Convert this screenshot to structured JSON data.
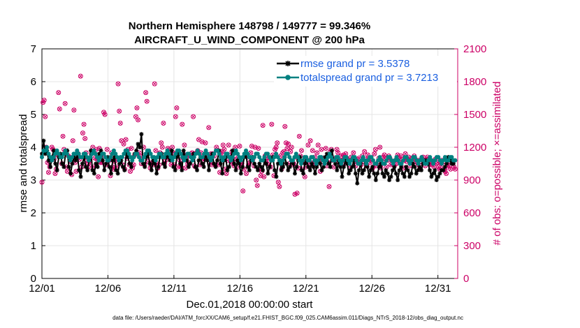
{
  "chart_data": {
    "type": "line",
    "title_lines": [
      "Northern Hemisphere 148798 / 149777 = 99.346%",
      "AIRCRAFT_U_WIND_COMPONENT @ 200 hPa"
    ],
    "xlabel": "Dec.01,2018 00:00:00 start",
    "ylabel": "rmse and totalspread",
    "y2label": "# of obs: o=possible; ×=assimilated",
    "footnote": "data file: /Users/raeder/DAI/ATM_forcXX/CAM6_setup/f.e21.FHIST_BGC.f09_025.CAM6assim.011/Diags_NTrS_2018-12/obs_diag_output.nc",
    "xlim": [
      0,
      31.5
    ],
    "ylim": [
      0,
      7
    ],
    "y2lim": [
      0,
      2100
    ],
    "xticks": [
      0,
      5,
      10,
      15,
      20,
      25,
      30
    ],
    "xticklabels": [
      "12/01",
      "12/06",
      "12/11",
      "12/16",
      "12/21",
      "12/26",
      "12/31"
    ],
    "yticks": [
      0,
      1,
      2,
      3,
      4,
      5,
      6,
      7
    ],
    "yticklabels": [
      "0",
      "1",
      "2",
      "3",
      "4",
      "5",
      "6",
      "7"
    ],
    "y2ticks": [
      0,
      300,
      600,
      900,
      1200,
      1500,
      1800,
      2100
    ],
    "y2ticklabels": [
      "0",
      "300",
      "600",
      "900",
      "1200",
      "1500",
      "1800",
      "2100"
    ],
    "colors": {
      "rmse": "#000000",
      "spread": "#008080",
      "obs": "#cc0066",
      "legend_text": "#1a5fe0"
    },
    "series": [
      {
        "name": "rmse",
        "label": "rmse grand pr = 3.5378",
        "values": [
          3.8,
          4.2,
          3.8,
          3.9,
          3.6,
          3.4,
          3.7,
          3.9,
          3.5,
          3.3,
          3.7,
          3.8,
          3.5,
          3.4,
          3.8,
          3.9,
          3.4,
          3.2,
          3.5,
          3.7,
          3.6,
          3.8,
          3.3,
          3.1,
          3.5,
          3.7,
          3.4,
          3.3,
          3.6,
          3.9,
          3.3,
          3.2,
          3.5,
          3.4,
          3.8,
          3.9,
          3.6,
          3.3,
          3.5,
          3.7,
          3.4,
          3.2,
          3.6,
          3.7,
          3.3,
          3.2,
          3.5,
          3.6,
          3.4,
          3.3,
          3.8,
          3.7,
          3.5,
          3.4,
          3.7,
          3.8,
          3.9,
          4.1,
          4.0,
          4.4,
          3.5,
          3.4,
          3.7,
          3.8,
          3.5,
          3.3,
          3.6,
          3.5,
          3.2,
          3.4,
          3.7,
          3.8,
          3.5,
          3.4,
          3.8,
          3.7,
          3.6,
          3.9,
          3.4,
          3.3,
          3.7,
          3.8,
          3.5,
          3.3,
          3.9,
          3.7,
          3.6,
          3.4,
          3.5,
          3.7,
          3.8,
          3.4,
          3.3,
          3.6,
          3.7,
          3.5,
          3.4,
          3.8,
          3.6,
          3.3,
          3.7,
          3.8,
          3.5,
          3.4,
          3.6,
          3.9,
          3.5,
          3.2,
          3.6,
          3.7,
          3.3,
          3.4,
          3.7,
          3.9,
          3.5,
          3.3,
          3.6,
          3.5,
          3.2,
          3.4,
          3.7,
          3.8,
          3.4,
          3.3,
          3.6,
          3.7,
          3.5,
          3.4,
          3.3,
          3.5,
          3.4,
          3.3,
          3.6,
          3.5,
          3.2,
          3.4,
          3.6,
          3.7,
          3.3,
          3.1,
          3.5,
          3.6,
          3.3,
          3.4,
          3.7,
          3.5,
          3.3,
          3.4,
          3.6,
          3.5,
          3.2,
          3.4,
          3.6,
          3.7,
          3.3,
          3.2,
          3.5,
          3.6,
          3.4,
          3.3,
          3.5,
          3.4,
          3.2,
          3.4,
          3.6,
          3.5,
          3.3,
          3.4,
          3.7,
          3.8,
          3.5,
          3.4,
          3.9,
          3.6,
          3.5,
          3.3,
          3.6,
          3.4,
          3.1,
          3.4,
          3.6,
          3.5,
          3.2,
          3.3,
          3.4,
          3.6,
          3.2,
          2.9,
          3.3,
          3.5,
          3.2,
          3.3,
          3.5,
          3.4,
          3.1,
          3.3,
          3.4,
          3.2,
          3.0,
          3.2,
          3.4,
          3.5,
          3.2,
          3.1,
          3.3,
          3.2,
          3.0,
          3.1,
          3.3,
          3.4,
          3.2,
          3.0,
          3.3,
          3.4,
          3.2,
          3.1,
          3.4,
          3.3,
          3.1,
          3.2,
          3.5,
          3.4,
          3.2,
          3.3,
          3.4,
          3.3,
          3.5,
          3.6,
          3.6,
          3.5,
          3.3,
          3.1,
          3.2,
          3.3,
          3.0,
          3.1,
          3.2,
          3.3,
          3.3,
          3.4,
          3.5,
          3.7,
          3.6,
          3.5,
          3.5,
          3.6
        ]
      },
      {
        "name": "totalspread",
        "label": "totalspread grand pr = 3.7213",
        "values": [
          3.7,
          3.9,
          3.9,
          4.0,
          3.8,
          3.7,
          3.6,
          3.7,
          3.8,
          3.9,
          3.8,
          3.7,
          3.7,
          3.8,
          3.9,
          3.8,
          3.7,
          3.6,
          3.7,
          3.8,
          3.8,
          3.9,
          3.8,
          3.7,
          3.7,
          3.8,
          3.8,
          3.7,
          3.6,
          3.7,
          3.8,
          3.9,
          3.8,
          3.7,
          3.6,
          3.7,
          3.8,
          3.8,
          3.7,
          3.6,
          3.6,
          3.7,
          3.8,
          3.9,
          3.8,
          3.7,
          3.6,
          3.7,
          3.7,
          3.8,
          3.9,
          3.9,
          3.8,
          3.7,
          3.6,
          3.7,
          3.8,
          3.8,
          3.7,
          3.6,
          3.6,
          3.7,
          3.8,
          3.9,
          3.9,
          3.8,
          3.7,
          3.7,
          3.6,
          3.7,
          3.8,
          3.8,
          3.7,
          3.7,
          3.8,
          3.9,
          3.8,
          3.7,
          3.6,
          3.7,
          3.8,
          3.9,
          3.9,
          3.8,
          3.7,
          3.6,
          3.7,
          3.8,
          3.8,
          3.7,
          3.6,
          3.7,
          3.8,
          3.9,
          3.8,
          3.7,
          3.7,
          3.8,
          3.9,
          3.8,
          3.7,
          3.6,
          3.7,
          3.8,
          3.9,
          3.9,
          3.8,
          3.7,
          3.6,
          3.7,
          3.8,
          3.8,
          3.7,
          3.6,
          3.7,
          3.8,
          3.9,
          3.8,
          3.7,
          3.6,
          3.7,
          3.8,
          3.9,
          3.8,
          3.7,
          3.7,
          3.6,
          3.7,
          3.8,
          3.8,
          3.7,
          3.6,
          3.6,
          3.7,
          3.8,
          3.8,
          3.7,
          3.6,
          3.6,
          3.7,
          3.8,
          3.7,
          3.6,
          3.5,
          3.6,
          3.7,
          3.8,
          3.8,
          3.7,
          3.6,
          3.6,
          3.7,
          3.8,
          3.7,
          3.6,
          3.5,
          3.6,
          3.7,
          3.7,
          3.6,
          3.6,
          3.7,
          3.7,
          3.6,
          3.5,
          3.6,
          3.7,
          3.7,
          3.6,
          3.5,
          3.6,
          3.7,
          3.8,
          3.7,
          3.6,
          3.6,
          3.7,
          3.7,
          3.6,
          3.5,
          3.6,
          3.7,
          3.7,
          3.6,
          3.5,
          3.6,
          3.7,
          3.7,
          3.6,
          3.5,
          3.5,
          3.6,
          3.7,
          3.6,
          3.5,
          3.6,
          3.7,
          3.7,
          3.6,
          3.5,
          3.5,
          3.6,
          3.7,
          3.6,
          3.5,
          3.5,
          3.6,
          3.7,
          3.7,
          3.6,
          3.5,
          3.6,
          3.7,
          3.6,
          3.5,
          3.5,
          3.6,
          3.7,
          3.7,
          3.6,
          3.5,
          3.6,
          3.7,
          3.7,
          3.6,
          3.5,
          3.6,
          3.7,
          3.6,
          3.5,
          3.5,
          3.6,
          3.7,
          3.6,
          3.5,
          3.6,
          3.7,
          3.7,
          3.6,
          3.5,
          3.6,
          3.7,
          3.6,
          3.6,
          3.7,
          3.7,
          3.6,
          3.6
        ]
      }
    ],
    "obs_counts": [
      880,
      1610,
      1630,
      1480,
      1200,
      1060,
      970,
      1020,
      1100,
      1200,
      1180,
      1090,
      960,
      1000,
      1130,
      1700,
      1550,
      1120,
      1050,
      1300,
      1180,
      1600,
      1020,
      980,
      1120,
      1110,
      1070,
      950,
      1260,
      1540,
      1060,
      980,
      1120,
      1140,
      1090,
      1850,
      1020,
      1330,
      1410,
      1280,
      1150,
      1080,
      1050,
      1070,
      1020,
      1140,
      1200,
      1020,
      1100,
      1180,
      1090,
      930,
      1190,
      1060,
      1060,
      1120,
      1520,
      1500,
      1040,
      1180,
      1080,
      1080,
      940,
      1150,
      1020,
      1000,
      1070,
      1090,
      1020,
      1780,
      1530,
      1420,
      1260,
      1040,
      1230,
      1000,
      1270,
      1100,
      1180,
      1040,
      980,
      1190,
      1010,
      1040,
      1130,
      1480,
      1560,
      1450,
      1150,
      1120,
      1050,
      1100,
      1200,
      1040,
      1700,
      1620,
      1070,
      1150,
      1010,
      1040,
      1060,
      1040,
      1780,
      1170,
      1050,
      1010,
      1040,
      1150,
      1240,
      1200,
      1420,
      1050,
      1080,
      1140,
      1190,
      1170,
      1100,
      1040,
      1200,
      1150,
      1040,
      1480,
      1560,
      1020,
      1140,
      1080,
      1020,
      1410,
      1140,
      1220,
      1010,
      1110,
      1050,
      1060,
      1120,
      1140,
      1150,
      1480,
      1030,
      1020,
      1150,
      1170,
      1270,
      1040,
      1150,
      1250,
      1080,
      1100,
      1240,
      1110,
      1130,
      1380,
      1060,
      1140,
      1040,
      1140,
      1120,
      1040,
      1200,
      1170,
      1040,
      970,
      1140,
      1160,
      1220,
      1180,
      1000,
      960,
      1080,
      1220,
      1120,
      1070,
      1160,
      1050,
      1030,
      1200,
      1090,
      1100,
      1020,
      1210,
      1050,
      1050,
      800,
      1000,
      1130,
      960,
      1110,
      1040,
      1060,
      1150,
      1210,
      1090,
      1030,
      1200,
      900,
      850,
      1190,
      1000,
      940,
      980,
      1400,
      930,
      1120,
      1060,
      1050,
      1100,
      1100,
      1020,
      1410,
      1130,
      940,
      1180,
      1200,
      1240,
      880,
      840,
      1120,
      1000,
      1150,
      1160,
      1390,
      1240,
      1190,
      1230,
      1050,
      1160,
      1200,
      1040,
      1050,
      770,
      1110,
      780,
      1010,
      1300,
      1120,
      1170,
      1000,
      1060,
      930,
      1020,
      1060,
      1220,
      1080,
      1260,
      1040,
      1170,
      1060,
      1110,
      1040,
      1150,
      1220,
      1080,
      980,
      1180,
      1100,
      1060,
      1100,
      1190,
      1030,
      1060,
      840,
      1160,
      1180,
      1080,
      1020,
      1100,
      1090,
      1180,
      1150,
      1060,
      1040,
      1120,
      1080,
      1130,
      1050,
      1140,
      1100,
      1080,
      1060,
      1010,
      1110,
      1090,
      1150,
      1070,
      1030,
      1080,
      1090,
      1100,
      1050,
      1040,
      1120,
      1070,
      1160,
      1090,
      1030,
      1130,
      1100,
      1060,
      1080,
      1000,
      1020,
      1140,
      1180,
      1030,
      1060,
      1100,
      1200,
      1010,
      1050,
      1110,
      1130,
      1090,
      1020,
      1080,
      1120,
      1100,
      1040,
      1050,
      1070,
      1030,
      1080,
      1050,
      1130,
      1100,
      1060,
      1120,
      1090,
      1010,
      1080,
      1140,
      1070,
      1090,
      1110,
      1030,
      1060,
      1100,
      1080,
      1120,
      1090,
      1040,
      1060,
      1080,
      1000,
      1050,
      1100,
      1110,
      1070,
      1030,
      1090,
      1110,
      1060,
      1080,
      1040,
      1040,
      1060,
      1020,
      1090,
      1050,
      1060,
      1020,
      1000,
      1060,
      1080,
      1040,
      1000,
      980,
      960,
      1020,
      1060,
      1030,
      1000,
      1080,
      1050,
      1020,
      1000
    ]
  },
  "legend": {
    "rmse": "rmse grand pr = 3.5378",
    "spread": "totalspread grand pr = 3.7213"
  }
}
